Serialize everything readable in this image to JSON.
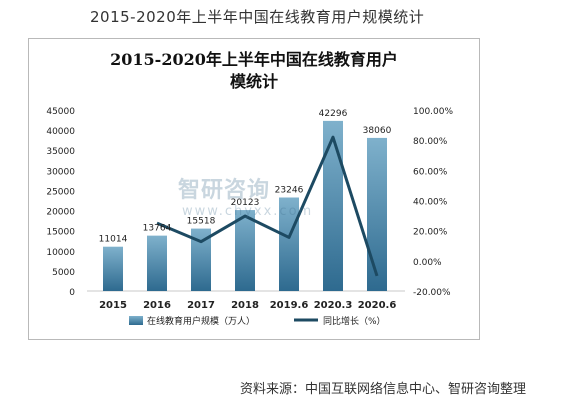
{
  "page_title": "2015-2020年上半年中国在线教育用户规模统计",
  "source_note": "资料来源：中国互联网络信息中心、智研咨询整理",
  "watermark": {
    "logo": "智研咨询",
    "url": "www.chyxx.com"
  },
  "colors": {
    "bar_top": "#7fb1cc",
    "bar_bottom": "#2e6a8f",
    "line": "#1d4a62",
    "axis_text": "#222222"
  },
  "chart_data": {
    "type": "bar",
    "title_lines": [
      "2015-2020年上半年中国在线教育用户",
      "模统计"
    ],
    "categories": [
      "2015",
      "2016",
      "2017",
      "2018",
      "2019.6",
      "2020.3",
      "2020.6"
    ],
    "series": [
      {
        "name": "在线教育用户规模（万人）",
        "type": "bar",
        "axis": "left",
        "values": [
          11014,
          13764,
          15518,
          20123,
          23246,
          42296,
          38060
        ],
        "labels": [
          "11014",
          "13764",
          "15518",
          "20123",
          "23246",
          "42296",
          "38060"
        ]
      },
      {
        "name": "同比增长（%）",
        "type": "line",
        "axis": "right",
        "values": [
          null,
          25.0,
          12.7,
          29.7,
          15.5,
          82.0,
          -10.0
        ]
      }
    ],
    "y_left": {
      "min": 0,
      "max": 45000,
      "ticks": [
        "0",
        "5000",
        "10000",
        "15000",
        "20000",
        "25000",
        "30000",
        "35000",
        "40000",
        "45000"
      ]
    },
    "y_right": {
      "min": -20,
      "max": 100,
      "ticks": [
        "-20.00%",
        "0.00%",
        "20.00%",
        "40.00%",
        "60.00%",
        "80.00%",
        "100.00%"
      ]
    },
    "legend_position": "bottom",
    "grid": false
  }
}
